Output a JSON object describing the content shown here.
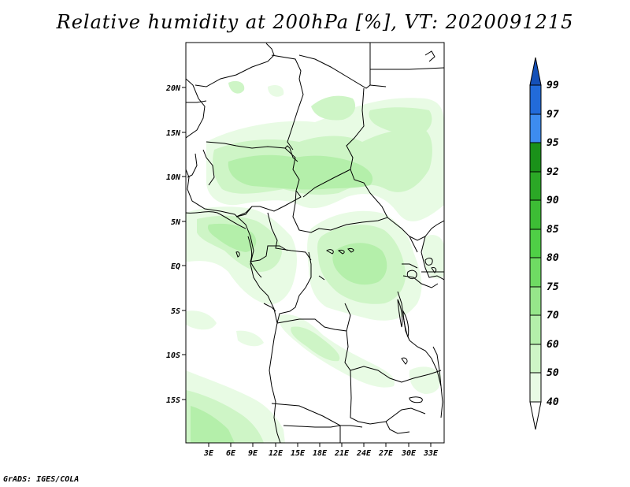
{
  "title": "Relative humidity at 200hPa [%], VT: 2020091215",
  "credit": "GrADS: IGES/COLA",
  "map": {
    "lat_labels": [
      "20N",
      "15N",
      "10N",
      "5N",
      "EQ",
      "5S",
      "10S",
      "15S"
    ],
    "lon_labels": [
      "3E",
      "6E",
      "9E",
      "12E",
      "15E",
      "18E",
      "21E",
      "24E",
      "27E",
      "30E",
      "33E"
    ]
  },
  "legend": {
    "colorbar_labels": [
      "99",
      "97",
      "95",
      "92",
      "90",
      "85",
      "80",
      "75",
      "70",
      "60",
      "50",
      "40"
    ],
    "colors": {
      "40-50": "#e8fbe4",
      "50-60": "#cef5c6",
      "60-70": "#b4efaa",
      "70-75": "#96e68a",
      "75-80": "#6fdb63",
      "80-85": "#4fcf46",
      "85-90": "#3dbd35",
      "90-92": "#2ba826",
      "92-95": "#1a9119",
      "95-97": "#3d8cf0",
      "97-99": "#226bda",
      "99+": "#1450b8"
    }
  }
}
